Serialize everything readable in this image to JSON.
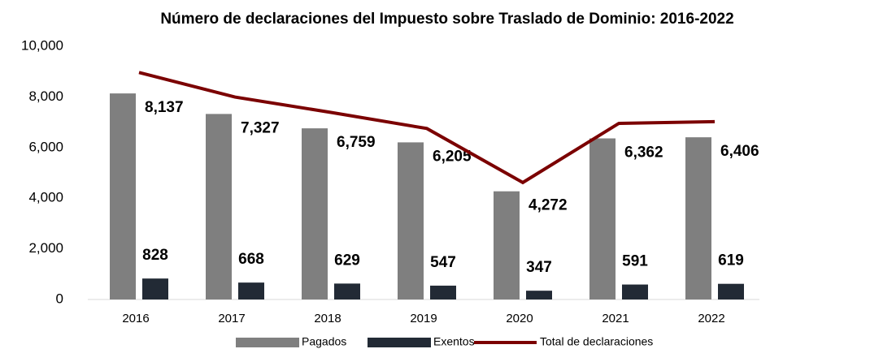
{
  "chart_data": {
    "type": "bar",
    "title": "Número de declaraciones del Impuesto sobre Traslado de Dominio: 2016-2022",
    "categories": [
      "2016",
      "2017",
      "2018",
      "2019",
      "2020",
      "2021",
      "2022"
    ],
    "series": [
      {
        "name": "Pagados",
        "color": "#7f7f7f",
        "values": [
          8137,
          7327,
          6759,
          6205,
          4272,
          6362,
          6406
        ],
        "value_labels": [
          "8,137",
          "7,327",
          "6,759",
          "6,205",
          "4,272",
          "6,362",
          "6,406"
        ]
      },
      {
        "name": "Exentos",
        "color": "#222a35",
        "values": [
          828,
          668,
          629,
          547,
          347,
          591,
          619
        ],
        "value_labels": [
          "828",
          "668",
          "629",
          "547",
          "347",
          "591",
          "619"
        ]
      },
      {
        "name": "Total de declaraciones",
        "color": "#7b0000",
        "type": "line",
        "values": [
          8965,
          7995,
          7388,
          6752,
          4619,
          6953,
          7025
        ]
      }
    ],
    "ylim": [
      0,
      10000
    ],
    "yticks": [
      0,
      {
        "value": 2000,
        "label": "2,000"
      },
      {
        "value": 4000,
        "label": "4,000"
      },
      {
        "value": 6000,
        "label": "6,000"
      },
      {
        "value": 8000,
        "label": "8,000"
      },
      {
        "value": 10000,
        "label": "10,000"
      }
    ],
    "grid": false
  }
}
